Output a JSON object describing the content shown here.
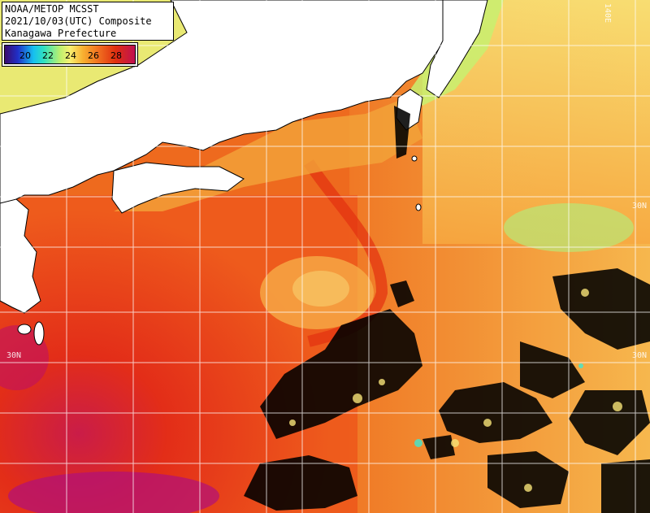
{
  "title": {
    "line1": "NOAA/METOP MCSST",
    "line2": "2021/10/03(UTC) Composite",
    "line3": "Kanagawa Prefecture"
  },
  "legend": {
    "ticks": [
      "20",
      "22",
      "24",
      "26",
      "28"
    ],
    "colors": [
      "#2030c8",
      "#16c0f0",
      "#b8f070",
      "#f8b030",
      "#e03010"
    ]
  },
  "grid": {
    "lat_labels": [
      "30N",
      "30N",
      "30N"
    ],
    "lon_label": "140E"
  },
  "map_colors": {
    "land": "#ffffff",
    "cloud": "#000000",
    "warm": "#e03010",
    "mid": "#f08a28",
    "cool": "#f8e070",
    "coastal": "#c8f070"
  }
}
